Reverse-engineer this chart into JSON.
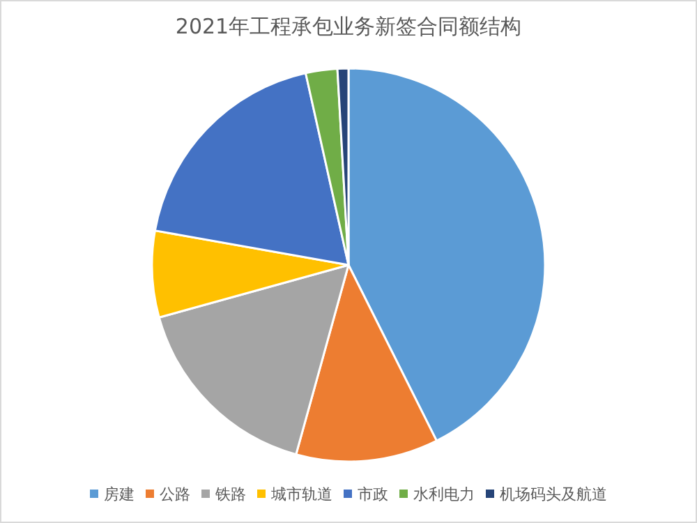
{
  "chart_data": {
    "type": "pie",
    "title": "2021年工程承包业务新签合同额结构",
    "categories": [
      "房建",
      "公路",
      "铁路",
      "城市轨道",
      "市政",
      "水利电力",
      "机场码头及航道"
    ],
    "values": [
      42.6,
      11.7,
      16.4,
      7.1,
      18.7,
      2.6,
      0.9
    ],
    "colors": [
      "#5b9bd5",
      "#ed7d31",
      "#a5a5a5",
      "#ffc000",
      "#4472c4",
      "#70ad47",
      "#264478"
    ],
    "legend": "bottom"
  }
}
